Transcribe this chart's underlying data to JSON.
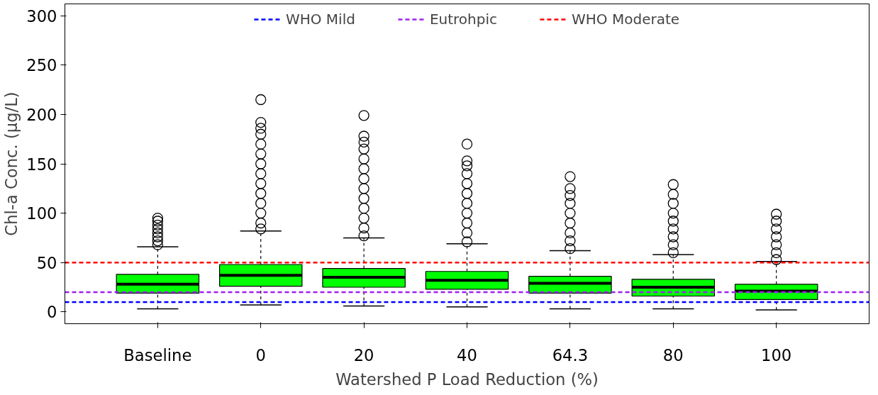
{
  "chart_data": {
    "type": "box",
    "xlabel": "Watershed P Load Reduction (%)",
    "ylabel": "Chl-a Conc. (µg/L)",
    "categories": [
      "Baseline",
      "0",
      "20",
      "40",
      "64.3",
      "80",
      "100"
    ],
    "ylim": [
      -12,
      312
    ],
    "yticks": [
      0,
      50,
      100,
      150,
      200,
      250,
      300
    ],
    "grid": false,
    "legend": "top",
    "color": "#00ff00",
    "boxes": [
      {
        "low": 3,
        "q1": 19,
        "median": 28,
        "q3": 38,
        "high": 66,
        "outliers": [
          68,
          72,
          76,
          80,
          84,
          88,
          92,
          95
        ]
      },
      {
        "low": 7,
        "q1": 26,
        "median": 37,
        "q3": 48,
        "high": 82,
        "outliers": [
          84,
          90,
          100,
          110,
          120,
          130,
          140,
          150,
          160,
          170,
          180,
          186,
          192,
          215
        ]
      },
      {
        "low": 6,
        "q1": 25,
        "median": 35,
        "q3": 44,
        "high": 75,
        "outliers": [
          77,
          85,
          95,
          105,
          115,
          125,
          135,
          145,
          155,
          165,
          172,
          178,
          199
        ]
      },
      {
        "low": 5,
        "q1": 23,
        "median": 32,
        "q3": 41,
        "high": 69,
        "outliers": [
          71,
          80,
          90,
          100,
          110,
          120,
          130,
          140,
          148,
          153,
          170
        ]
      },
      {
        "low": 3,
        "q1": 19,
        "median": 29,
        "q3": 36,
        "high": 62,
        "outliers": [
          64,
          72,
          80,
          90,
          100,
          110,
          118,
          125,
          137
        ]
      },
      {
        "low": 3,
        "q1": 16,
        "median": 25,
        "q3": 33,
        "high": 58,
        "outliers": [
          60,
          68,
          76,
          84,
          92,
          100,
          110,
          119,
          129
        ]
      },
      {
        "low": 2,
        "q1": 12.5,
        "median": 21,
        "q3": 28,
        "high": 51,
        "outliers": [
          53,
          60,
          68,
          76,
          84,
          92,
          99
        ]
      }
    ],
    "ref_lines": [
      {
        "axis": "y",
        "value": 10,
        "label": "WHO Mild",
        "color": "#0000ff",
        "line_style": "dashed"
      },
      {
        "axis": "y",
        "value": 20,
        "label": "Eutrohpic",
        "color": "#a020f0",
        "line_style": "dashed"
      },
      {
        "axis": "y",
        "value": 50,
        "label": "WHO Moderate",
        "color": "#ff0000",
        "line_style": "dashed"
      }
    ]
  }
}
